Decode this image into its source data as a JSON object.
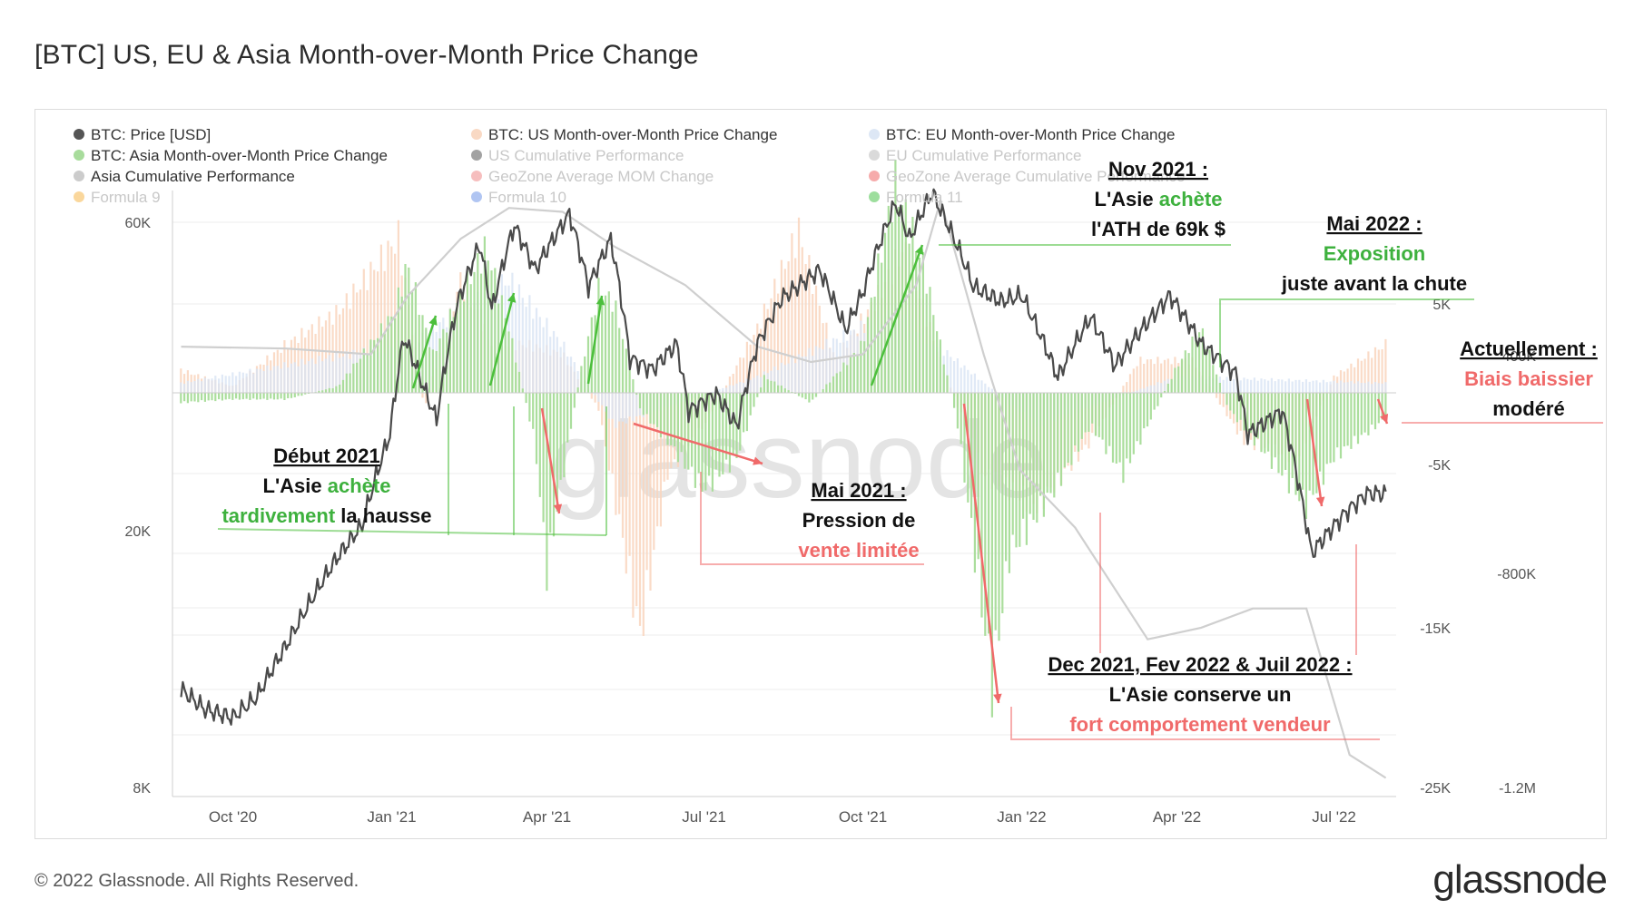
{
  "title": "[BTC] US, EU & Asia Month-over-Month Price Change",
  "footer": "© 2022 Glassnode. All Rights Reserved.",
  "brand": "glassnode",
  "watermark": "glassnode",
  "chart_data": {
    "type": "line",
    "x_ticks": [
      "Oct '20",
      "Jan '21",
      "Apr '21",
      "Jul '21",
      "Oct '21",
      "Jan '22",
      "Apr '22",
      "Jul '22"
    ],
    "y_left_ticks": [
      "60K",
      "20K",
      "8K"
    ],
    "y_left_scale": "log",
    "y_right1_ticks": [
      "5K",
      "-5K",
      "-15K",
      "-25K"
    ],
    "y_right2_ticks": [
      "400K",
      "-800K",
      "-1.2M"
    ],
    "legend": [
      {
        "label": "BTC: Price [USD]",
        "color": "#555555",
        "faded": false
      },
      {
        "label": "BTC: US Month-over-Month Price Change",
        "color": "#f9d9c4",
        "faded": false
      },
      {
        "label": "BTC: EU Month-over-Month Price Change",
        "color": "#dde7f5",
        "faded": false
      },
      {
        "label": "BTC: Asia Month-over-Month Price Change",
        "color": "#a8dc9c",
        "faded": false
      },
      {
        "label": "US Cumulative Performance",
        "color": "#555555",
        "faded": true
      },
      {
        "label": "EU Cumulative Performance",
        "color": "#bbbbbb",
        "faded": true
      },
      {
        "label": "Asia Cumulative Performance",
        "color": "#cccccc",
        "faded": false
      },
      {
        "label": "GeoZone Average MOM Change",
        "color": "#e88",
        "faded": true
      },
      {
        "label": "GeoZone Average Cumulative Performance",
        "color": "#e66",
        "faded": true
      },
      {
        "label": "Formula 9",
        "color": "#f5b74a",
        "faded": true
      },
      {
        "label": "Formula 10",
        "color": "#6f95e8",
        "faded": true
      },
      {
        "label": "Formula 11",
        "color": "#4cc24c",
        "faded": true
      }
    ],
    "price_usd": [
      [
        "2020-09-01",
        11700
      ],
      [
        "2020-09-15",
        10900
      ],
      [
        "2020-10-01",
        10600
      ],
      [
        "2020-10-15",
        11400
      ],
      [
        "2020-11-01",
        13700
      ],
      [
        "2020-11-15",
        16000
      ],
      [
        "2020-12-01",
        18800
      ],
      [
        "2020-12-15",
        21000
      ],
      [
        "2020-12-31",
        29000
      ],
      [
        "2021-01-08",
        41000
      ],
      [
        "2021-01-20",
        34000
      ],
      [
        "2021-01-27",
        30500
      ],
      [
        "2021-02-08",
        46000
      ],
      [
        "2021-02-21",
        57000
      ],
      [
        "2021-02-28",
        45000
      ],
      [
        "2021-03-13",
        61000
      ],
      [
        "2021-03-25",
        52000
      ],
      [
        "2021-04-14",
        63500
      ],
      [
        "2021-04-25",
        49000
      ],
      [
        "2021-05-08",
        58000
      ],
      [
        "2021-05-19",
        38000
      ],
      [
        "2021-06-01",
        36500
      ],
      [
        "2021-06-15",
        40000
      ],
      [
        "2021-06-22",
        31500
      ],
      [
        "2021-07-08",
        33500
      ],
      [
        "2021-07-20",
        29800
      ],
      [
        "2021-08-01",
        40000
      ],
      [
        "2021-08-15",
        47000
      ],
      [
        "2021-09-06",
        52000
      ],
      [
        "2021-09-21",
        42000
      ],
      [
        "2021-10-01",
        48000
      ],
      [
        "2021-10-20",
        66000
      ],
      [
        "2021-10-28",
        58000
      ],
      [
        "2021-11-10",
        68500
      ],
      [
        "2021-11-28",
        54000
      ],
      [
        "2021-12-04",
        49000
      ],
      [
        "2021-12-20",
        46500
      ],
      [
        "2022-01-01",
        47500
      ],
      [
        "2022-01-22",
        35500
      ],
      [
        "2022-02-10",
        44000
      ],
      [
        "2022-02-24",
        37000
      ],
      [
        "2022-03-28",
        47500
      ],
      [
        "2022-04-15",
        40000
      ],
      [
        "2022-05-05",
        36000
      ],
      [
        "2022-05-12",
        29000
      ],
      [
        "2022-06-01",
        31500
      ],
      [
        "2022-06-13",
        22500
      ],
      [
        "2022-06-18",
        19000
      ],
      [
        "2022-07-08",
        22000
      ],
      [
        "2022-07-20",
        23500
      ],
      [
        "2022-07-31",
        23500
      ]
    ],
    "asia_mom_change": [
      [
        "2020-09-01",
        -0.3
      ],
      [
        "2020-10-01",
        -0.2
      ],
      [
        "2020-11-01",
        -0.2
      ],
      [
        "2020-12-01",
        0.2
      ],
      [
        "2021-01-03",
        2.5
      ],
      [
        "2021-01-10",
        4.0
      ],
      [
        "2021-01-25",
        1.2
      ],
      [
        "2021-02-10",
        3.0
      ],
      [
        "2021-02-25",
        4.5
      ],
      [
        "2021-03-10",
        2.0
      ],
      [
        "2021-03-25",
        -1.5
      ],
      [
        "2021-04-01",
        -5.5
      ],
      [
        "2021-04-20",
        0.5
      ],
      [
        "2021-05-01",
        3.2
      ],
      [
        "2021-05-10",
        2.8
      ],
      [
        "2021-05-25",
        -0.5
      ],
      [
        "2021-06-10",
        -1.5
      ],
      [
        "2021-07-01",
        -3.0
      ],
      [
        "2021-07-20",
        -2.0
      ],
      [
        "2021-08-05",
        0.5
      ],
      [
        "2021-09-01",
        -0.3
      ],
      [
        "2021-10-01",
        1.5
      ],
      [
        "2021-10-20",
        6.5
      ],
      [
        "2021-11-05",
        4.0
      ],
      [
        "2021-11-25",
        -1.0
      ],
      [
        "2021-12-15",
        -9.0
      ],
      [
        "2021-12-25",
        -5.0
      ],
      [
        "2022-01-20",
        -3.0
      ],
      [
        "2022-02-10",
        -1.0
      ],
      [
        "2022-03-01",
        -2.5
      ],
      [
        "2022-04-01",
        0.8
      ],
      [
        "2022-04-15",
        2.0
      ],
      [
        "2022-05-01",
        -0.5
      ],
      [
        "2022-06-01",
        -2.5
      ],
      [
        "2022-06-15",
        -3.5
      ],
      [
        "2022-07-01",
        -2.0
      ],
      [
        "2022-07-31",
        -0.8
      ]
    ],
    "us_mom_change": [
      [
        "2020-09-01",
        0.7
      ],
      [
        "2020-10-01",
        0.2
      ],
      [
        "2020-11-01",
        1.5
      ],
      [
        "2020-12-01",
        2.5
      ],
      [
        "2021-01-05",
        4.8
      ],
      [
        "2021-01-20",
        -0.5
      ],
      [
        "2021-02-10",
        3.5
      ],
      [
        "2021-02-28",
        1.5
      ],
      [
        "2021-03-20",
        1.5
      ],
      [
        "2021-04-10",
        1.2
      ],
      [
        "2021-05-01",
        -0.5
      ],
      [
        "2021-05-25",
        -7.5
      ],
      [
        "2021-06-10",
        -2.5
      ],
      [
        "2021-07-01",
        -1.0
      ],
      [
        "2021-08-01",
        2.0
      ],
      [
        "2021-08-25",
        5.0
      ],
      [
        "2021-09-15",
        1.0
      ],
      [
        "2021-10-10",
        3.0
      ],
      [
        "2021-10-25",
        4.5
      ],
      [
        "2021-11-15",
        1.0
      ],
      [
        "2021-12-10",
        -2.5
      ],
      [
        "2022-01-10",
        -3.5
      ],
      [
        "2022-02-10",
        -1.5
      ],
      [
        "2022-03-10",
        1.0
      ],
      [
        "2022-04-10",
        1.0
      ],
      [
        "2022-05-10",
        -1.5
      ],
      [
        "2022-06-10",
        -2.0
      ],
      [
        "2022-07-01",
        0.5
      ],
      [
        "2022-07-31",
        1.5
      ]
    ],
    "eu_mom_change": [
      [
        "2020-09-01",
        0.3
      ],
      [
        "2021-01-10",
        1.5
      ],
      [
        "2021-03-10",
        3.5
      ],
      [
        "2021-04-10",
        1.5
      ],
      [
        "2021-05-10",
        -1.0
      ],
      [
        "2021-08-01",
        0.5
      ],
      [
        "2021-10-20",
        2.5
      ],
      [
        "2022-01-10",
        -1.0
      ],
      [
        "2022-04-01",
        0.5
      ],
      [
        "2022-07-31",
        0.3
      ]
    ],
    "asia_cumulative": [
      [
        "2020-09-01",
        120000
      ],
      [
        "2020-11-01",
        115000
      ],
      [
        "2020-12-20",
        100000
      ],
      [
        "2021-01-10",
        250000
      ],
      [
        "2021-02-10",
        400000
      ],
      [
        "2021-03-10",
        480000
      ],
      [
        "2021-04-10",
        470000
      ],
      [
        "2021-05-10",
        380000
      ],
      [
        "2021-06-20",
        280000
      ],
      [
        "2021-08-01",
        120000
      ],
      [
        "2021-09-01",
        80000
      ],
      [
        "2021-10-01",
        100000
      ],
      [
        "2021-11-01",
        280000
      ],
      [
        "2021-11-15",
        500000
      ],
      [
        "2021-12-10",
        100000
      ],
      [
        "2021-12-31",
        -200000
      ],
      [
        "2022-02-01",
        -350000
      ],
      [
        "2022-03-15",
        -640000
      ],
      [
        "2022-04-15",
        -610000
      ],
      [
        "2022-05-15",
        -560000
      ],
      [
        "2022-06-15",
        -560000
      ],
      [
        "2022-07-10",
        -940000
      ],
      [
        "2022-07-31",
        -1000000
      ]
    ],
    "annotations": [
      {
        "title": "Début 2021",
        "lines": [
          [
            {
              "t": "L'Asie ",
              "c": "#111"
            },
            {
              "t": "achète",
              "c": "#3eb13e"
            }
          ],
          [
            {
              "t": "tardivement",
              "c": "#3eb13e"
            },
            {
              "t": " la hausse",
              "c": "#111"
            }
          ]
        ]
      },
      {
        "title": "Mai 2021 :",
        "lines": [
          [
            {
              "t": "Pression de",
              "c": "#111"
            }
          ],
          [
            {
              "t": "vente limitée",
              "c": "#f06a6a"
            }
          ]
        ]
      },
      {
        "title": "Nov 2021 :",
        "lines": [
          [
            {
              "t": "L'Asie ",
              "c": "#111"
            },
            {
              "t": "achète",
              "c": "#3eb13e"
            }
          ],
          [
            {
              "t": "l'ATH de 69k $",
              "c": "#111"
            }
          ]
        ]
      },
      {
        "title": "Mai 2022 :",
        "lines": [
          [
            {
              "t": "Exposition",
              "c": "#3eb13e"
            }
          ],
          [
            {
              "t": "juste avant la chute",
              "c": "#111"
            }
          ]
        ]
      },
      {
        "title": "Actuellement :",
        "lines": [
          [
            {
              "t": "Biais baissier",
              "c": "#f06a6a"
            }
          ],
          [
            {
              "t": "modéré",
              "c": "#111"
            }
          ]
        ]
      },
      {
        "title": "Dec 2021, Fev 2022 & Juil 2022 :",
        "lines": [
          [
            {
              "t": "L'Asie conserve un",
              "c": "#111"
            }
          ],
          [
            {
              "t": "fort comportement vendeur",
              "c": "#f06a6a"
            }
          ]
        ]
      }
    ]
  }
}
